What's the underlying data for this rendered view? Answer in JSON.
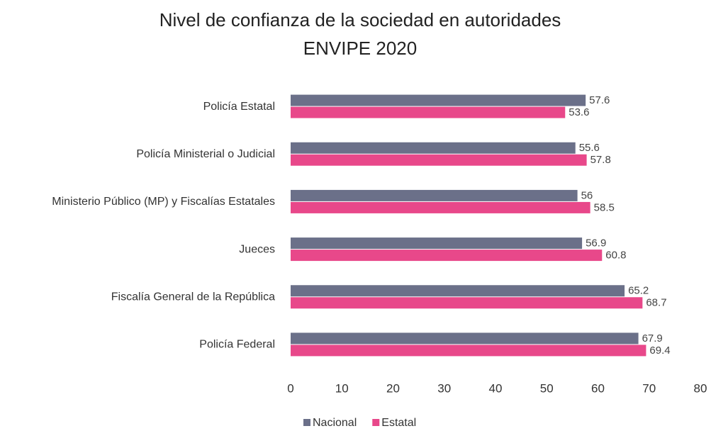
{
  "chart_data": {
    "type": "barh",
    "title": "Nivel de confianza de la sociedad en autoridades",
    "subtitle": "ENVIPE 2020",
    "categories": [
      "Policía Estatal",
      "Policía Ministerial o Judicial",
      "Ministerio Público (MP) y Fiscalías Estatales",
      "Jueces",
      "Fiscalía General de la República",
      "Policía Federal"
    ],
    "series": [
      {
        "name": "Nacional",
        "color": "#6b7089",
        "values": [
          57.6,
          55.6,
          56,
          56.9,
          65.2,
          67.9
        ]
      },
      {
        "name": "Estatal",
        "color": "#e8488a",
        "values": [
          53.6,
          57.8,
          58.5,
          60.8,
          68.7,
          69.4
        ]
      }
    ],
    "xlim": [
      0,
      80
    ],
    "xticks": [
      0,
      10,
      20,
      30,
      40,
      50,
      60,
      70,
      80
    ],
    "grid": false,
    "legend": "bottom"
  }
}
